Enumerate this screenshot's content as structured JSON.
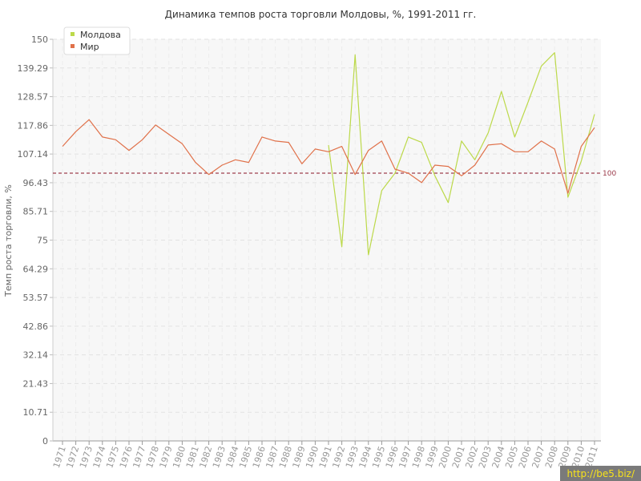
{
  "watermark": "http://be5.biz/",
  "chart_data": {
    "type": "line",
    "title": "Динамика темпов роста торговли Молдовы, %, 1991-2011 гг.",
    "xlabel": "",
    "ylabel": "Темп роста торговли, %",
    "ylim": [
      0,
      150
    ],
    "y_ticks": [
      "0",
      "10.71",
      "21.43",
      "32.14",
      "42.86",
      "53.57",
      "64.29",
      "75",
      "85.71",
      "96.43",
      "107.14",
      "117.86",
      "128.57",
      "139.29",
      "150"
    ],
    "categories": [
      "1971",
      "1972",
      "1973",
      "1974",
      "1975",
      "1976",
      "1977",
      "1978",
      "1979",
      "1980",
      "1981",
      "1982",
      "1983",
      "1984",
      "1985",
      "1986",
      "1987",
      "1988",
      "1989",
      "1990",
      "1991",
      "1992",
      "1993",
      "1994",
      "1995",
      "1996",
      "1997",
      "1998",
      "1999",
      "2000",
      "2001",
      "2002",
      "2003",
      "2004",
      "2005",
      "2006",
      "2007",
      "2008",
      "2009",
      "2010",
      "2011"
    ],
    "grid": true,
    "legend_position": "top-left",
    "reference_line": {
      "value": 100,
      "label": "100",
      "color": "#a0404e"
    },
    "series": [
      {
        "name": "Молдова",
        "color": "#bcd94a",
        "values": [
          null,
          null,
          null,
          null,
          null,
          null,
          null,
          null,
          null,
          null,
          null,
          null,
          null,
          null,
          null,
          null,
          null,
          null,
          null,
          null,
          110.5,
          72.5,
          144.2,
          69.5,
          93.5,
          100,
          113.5,
          111.5,
          99,
          89,
          112,
          105,
          115,
          130.5,
          113.5,
          126.5,
          140,
          145,
          91,
          104.5,
          122
        ]
      },
      {
        "name": "Мир",
        "color": "#e0714a",
        "values": [
          110,
          115.5,
          120,
          113.5,
          112.5,
          108.5,
          112.5,
          118,
          114.5,
          111,
          104,
          99.5,
          103,
          105,
          104,
          113.5,
          112,
          111.5,
          103.5,
          109,
          108,
          110,
          99.5,
          108.5,
          112,
          101.5,
          100,
          96.5,
          103,
          102.5,
          99,
          103,
          110.5,
          111,
          108,
          108,
          112,
          109,
          92.5,
          110,
          117
        ]
      }
    ]
  }
}
